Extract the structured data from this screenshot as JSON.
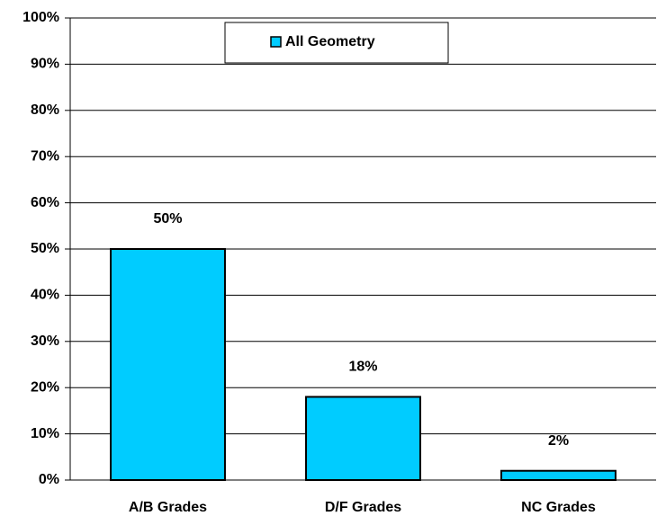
{
  "chart_data": {
    "type": "bar",
    "categories": [
      "A/B Grades",
      "D/F Grades",
      "NC Grades"
    ],
    "series": [
      {
        "name": "All Geometry",
        "color": "#00ccff",
        "values": [
          50,
          18,
          2
        ],
        "value_labels": [
          "50%",
          "18%",
          "2%"
        ]
      }
    ],
    "ylim": [
      0,
      100
    ],
    "yticks": [
      {
        "value": 0,
        "label": "0%"
      },
      {
        "value": 10,
        "label": "10%"
      },
      {
        "value": 20,
        "label": "20%"
      },
      {
        "value": 30,
        "label": "30%"
      },
      {
        "value": 40,
        "label": "40%"
      },
      {
        "value": 50,
        "label": "50%"
      },
      {
        "value": 60,
        "label": "60%"
      },
      {
        "value": 70,
        "label": "70%"
      },
      {
        "value": 80,
        "label": "80%"
      },
      {
        "value": 90,
        "label": "90%"
      },
      {
        "value": 100,
        "label": "100%"
      }
    ],
    "grid": true,
    "legend": "top"
  }
}
